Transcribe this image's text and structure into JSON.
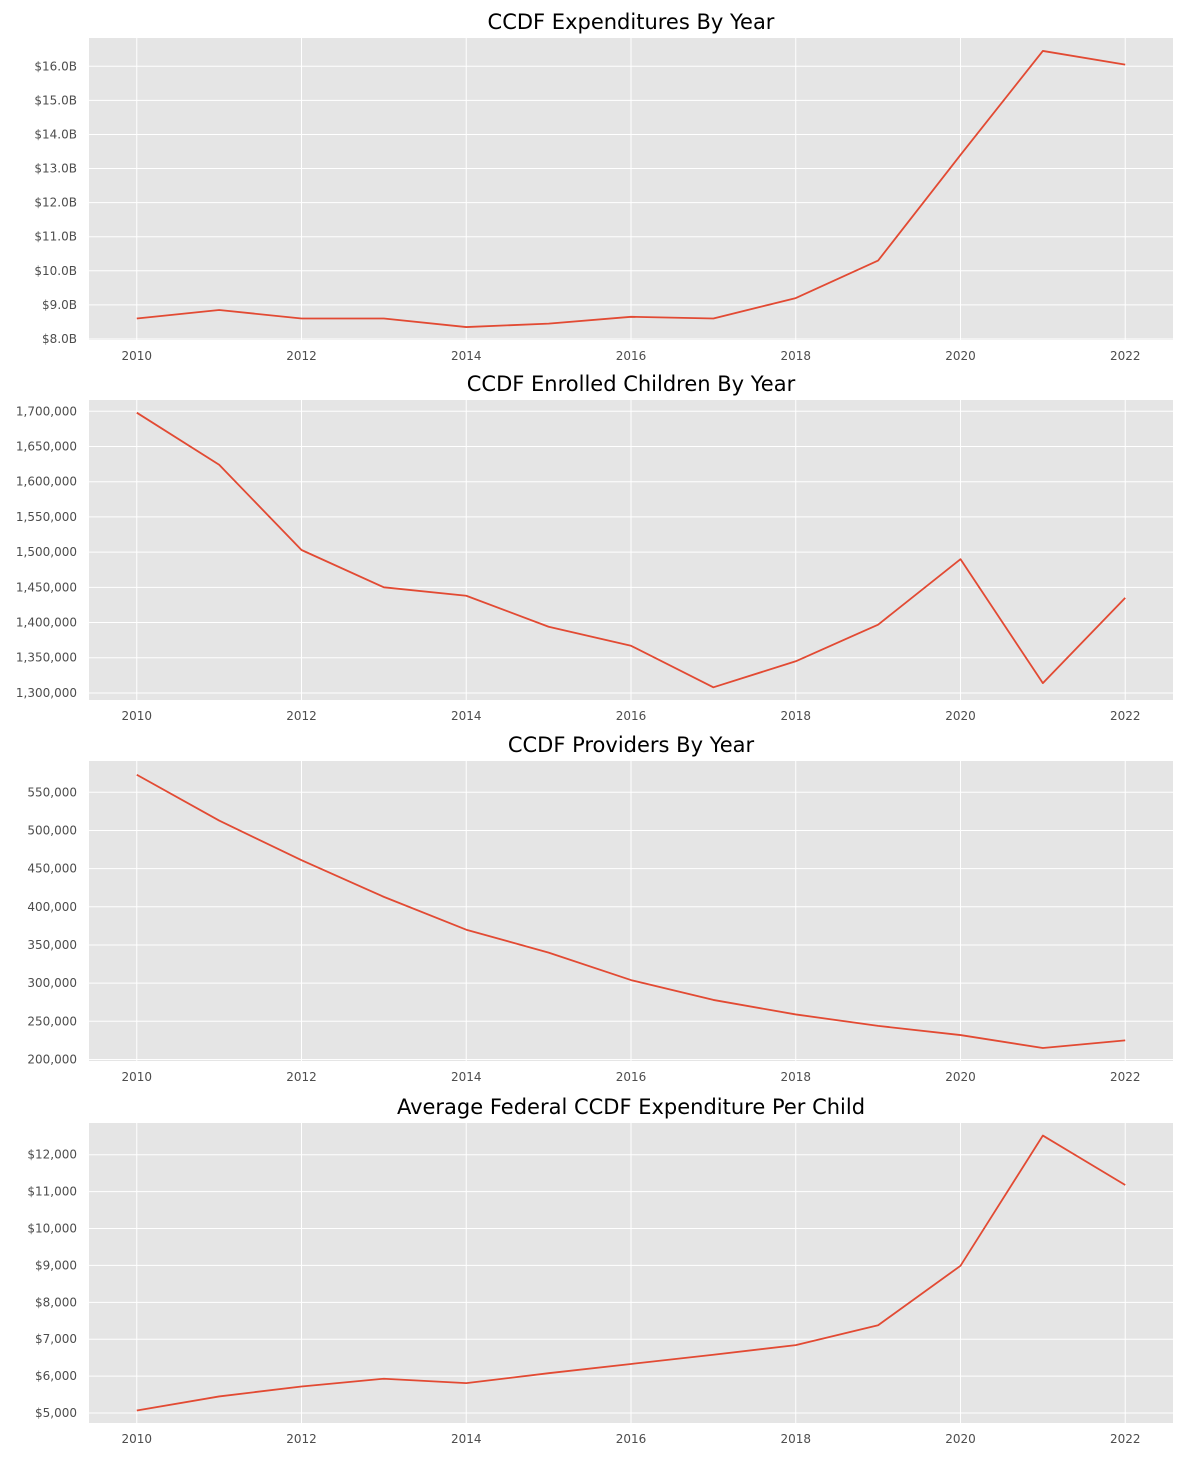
{
  "chart_data": [
    {
      "type": "line",
      "title": "CCDF Expenditures By Year",
      "xlabel": "",
      "ylabel": "",
      "x": [
        2010,
        2011,
        2012,
        2013,
        2014,
        2015,
        2016,
        2017,
        2018,
        2019,
        2020,
        2021,
        2022
      ],
      "series": [
        {
          "values": [
            8.6,
            8.85,
            8.6,
            8.6,
            8.35,
            8.45,
            8.65,
            8.6,
            9.2,
            10.3,
            13.4,
            16.45,
            16.05
          ]
        }
      ],
      "xlim": [
        2009.42,
        2022.58
      ],
      "ylim": [
        7.97,
        16.83
      ],
      "xticks": [
        2010,
        2012,
        2014,
        2016,
        2018,
        2020,
        2022
      ],
      "xtick_labels": [
        "2010",
        "2012",
        "2014",
        "2016",
        "2018",
        "2020",
        "2022"
      ],
      "yticks": [
        8,
        9,
        10,
        11,
        12,
        13,
        14,
        15,
        16
      ],
      "ytick_labels": [
        "$8.0B",
        "$9.0B",
        "$10.0B",
        "$11.0B",
        "$12.0B",
        "$13.0B",
        "$14.0B",
        "$15.0B",
        "$16.0B"
      ],
      "grid": true
    },
    {
      "type": "line",
      "title": "CCDF Enrolled Children By Year",
      "xlabel": "",
      "ylabel": "",
      "x": [
        2010,
        2011,
        2012,
        2013,
        2014,
        2015,
        2016,
        2017,
        2018,
        2019,
        2020,
        2021,
        2022
      ],
      "series": [
        {
          "values": [
            1698000,
            1624000,
            1503000,
            1450000,
            1438000,
            1394000,
            1367000,
            1308000,
            1345000,
            1397000,
            1490000,
            1314000,
            1435000
          ]
        }
      ],
      "xlim": [
        2009.42,
        2022.58
      ],
      "ylim": [
        1290000,
        1716000
      ],
      "xticks": [
        2010,
        2012,
        2014,
        2016,
        2018,
        2020,
        2022
      ],
      "xtick_labels": [
        "2010",
        "2012",
        "2014",
        "2016",
        "2018",
        "2020",
        "2022"
      ],
      "yticks": [
        1300000,
        1350000,
        1400000,
        1450000,
        1500000,
        1550000,
        1600000,
        1650000,
        1700000
      ],
      "ytick_labels": [
        "1,300,000",
        "1,350,000",
        "1,400,000",
        "1,450,000",
        "1,500,000",
        "1,550,000",
        "1,600,000",
        "1,650,000",
        "1,700,000"
      ],
      "grid": true
    },
    {
      "type": "line",
      "title": "CCDF Providers By Year",
      "xlabel": "",
      "ylabel": "",
      "x": [
        2010,
        2011,
        2012,
        2013,
        2014,
        2015,
        2016,
        2017,
        2018,
        2019,
        2020,
        2021,
        2022
      ],
      "series": [
        {
          "values": [
            573000,
            513000,
            461000,
            413000,
            370000,
            340000,
            304000,
            278000,
            259000,
            244000,
            232000,
            215000,
            225000
          ]
        }
      ],
      "xlim": [
        2009.42,
        2022.58
      ],
      "ylim": [
        198000,
        591000
      ],
      "xticks": [
        2010,
        2012,
        2014,
        2016,
        2018,
        2020,
        2022
      ],
      "xtick_labels": [
        "2010",
        "2012",
        "2014",
        "2016",
        "2018",
        "2020",
        "2022"
      ],
      "yticks": [
        200000,
        250000,
        300000,
        350000,
        400000,
        450000,
        500000,
        550000
      ],
      "ytick_labels": [
        "200,000",
        "250,000",
        "300,000",
        "350,000",
        "400,000",
        "450,000",
        "500,000",
        "550,000"
      ],
      "grid": true
    },
    {
      "type": "line",
      "title": "Average Federal CCDF Expenditure Per Child",
      "xlabel": "",
      "ylabel": "",
      "x": [
        2010,
        2011,
        2012,
        2013,
        2014,
        2015,
        2016,
        2017,
        2018,
        2019,
        2020,
        2021,
        2022
      ],
      "series": [
        {
          "values": [
            5070,
            5450,
            5720,
            5930,
            5810,
            6080,
            6330,
            6580,
            6840,
            7380,
            8990,
            12520,
            11180
          ]
        }
      ],
      "xlim": [
        2009.42,
        2022.58
      ],
      "ylim": [
        4730,
        12860
      ],
      "xticks": [
        2010,
        2012,
        2014,
        2016,
        2018,
        2020,
        2022
      ],
      "xtick_labels": [
        "2010",
        "2012",
        "2014",
        "2016",
        "2018",
        "2020",
        "2022"
      ],
      "yticks": [
        5000,
        6000,
        7000,
        8000,
        9000,
        10000,
        11000,
        12000
      ],
      "ytick_labels": [
        "$5,000",
        "$6,000",
        "$7,000",
        "$8,000",
        "$9,000",
        "$10,000",
        "$11,000",
        "$12,000"
      ],
      "grid": true
    }
  ],
  "colors": {
    "line": "#e24a33",
    "plot_bg": "#e5e5e5",
    "grid": "#ffffff",
    "tick_text": "#4d4d4d"
  }
}
